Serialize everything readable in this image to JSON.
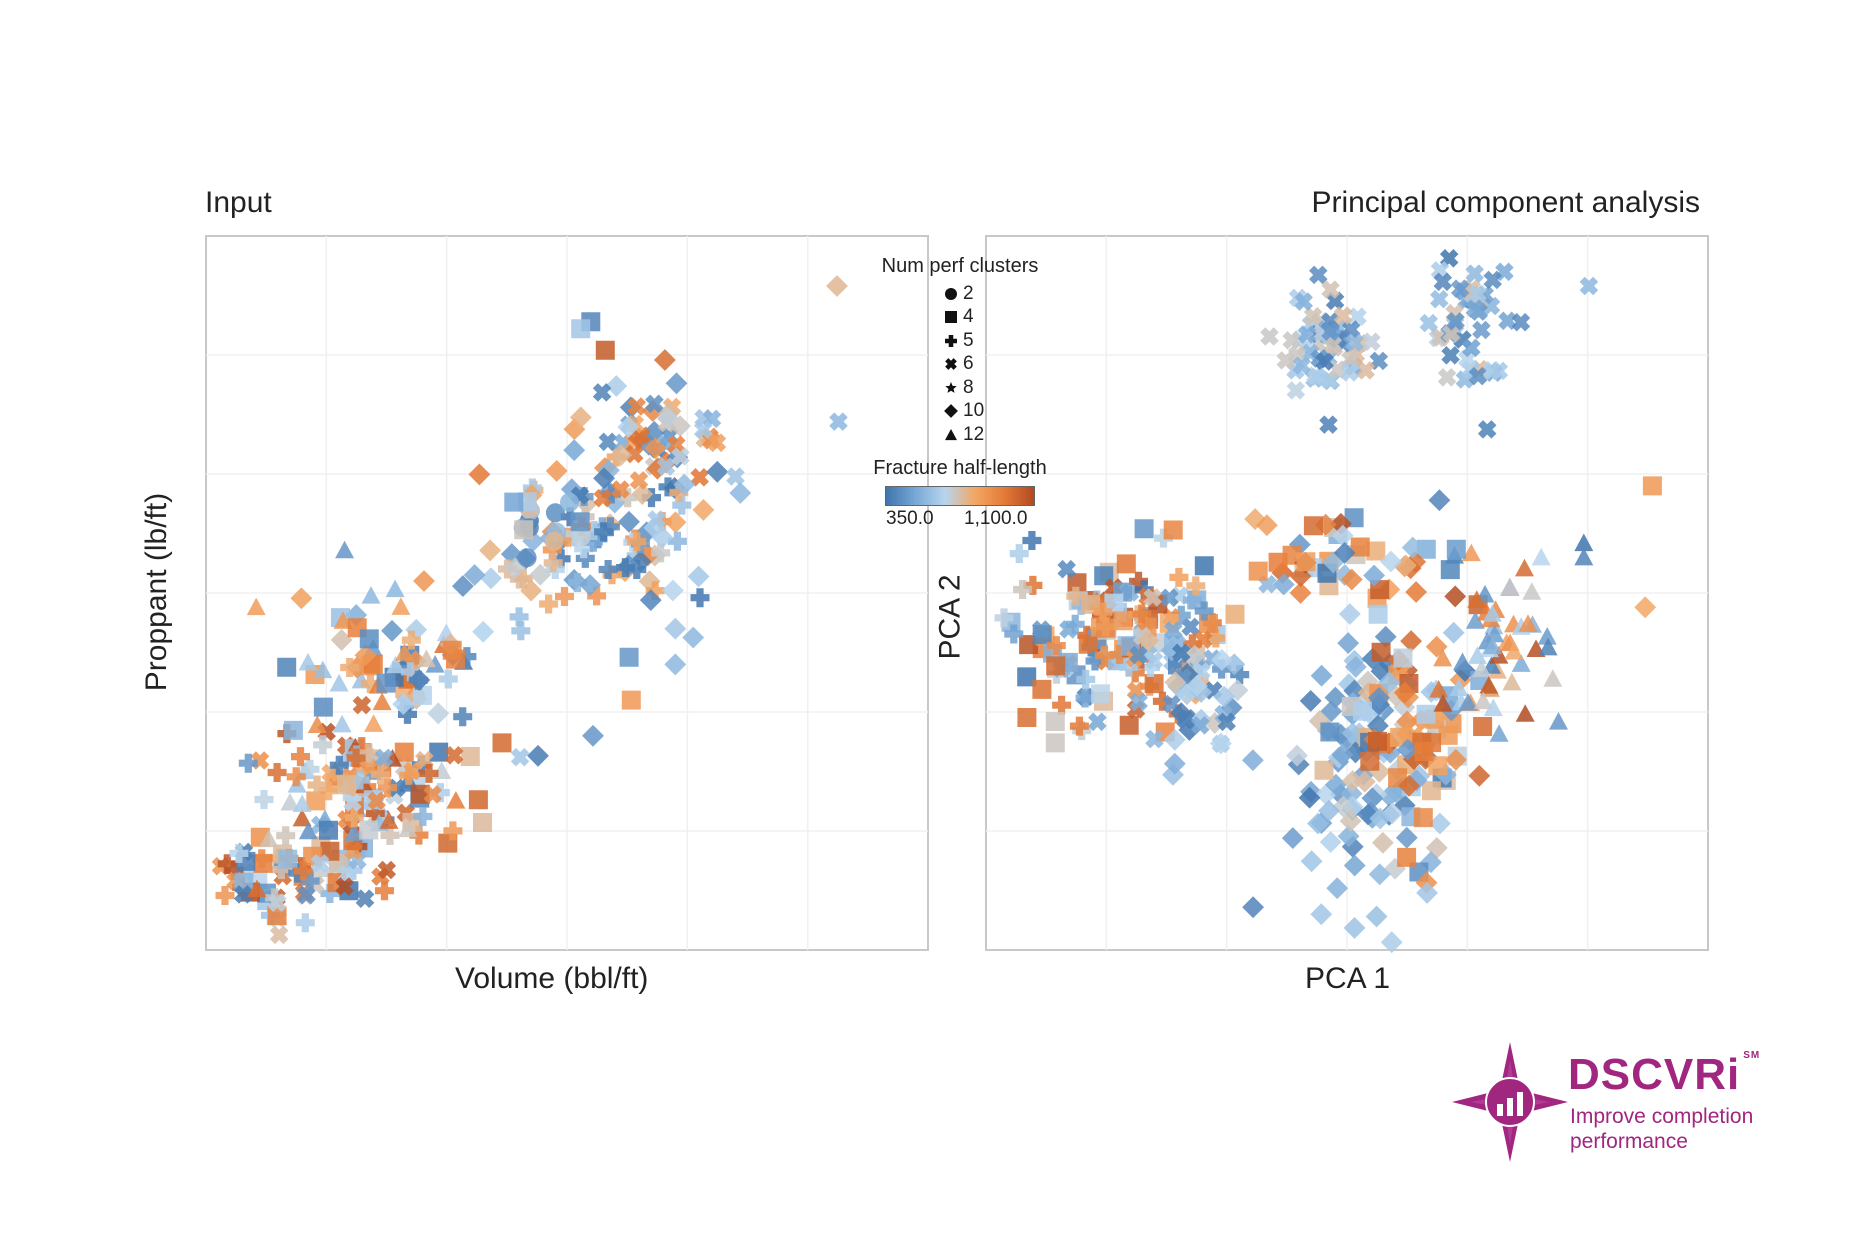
{
  "panels": {
    "input": {
      "title": "Input",
      "xlabel": "Volume (bbl/ft)",
      "ylabel": "Proppant (lb/ft)"
    },
    "pca": {
      "title": "Principal component analysis",
      "xlabel": "PCA 1",
      "ylabel": "PCA 2"
    }
  },
  "legend": {
    "shape_title": "Num perf clusters",
    "shapes": [
      {
        "value": "2",
        "shape": "circle"
      },
      {
        "value": "4",
        "shape": "square"
      },
      {
        "value": "5",
        "shape": "plus"
      },
      {
        "value": "6",
        "shape": "cross"
      },
      {
        "value": "8",
        "shape": "star"
      },
      {
        "value": "10",
        "shape": "diamond"
      },
      {
        "value": "12",
        "shape": "triangle"
      }
    ],
    "color_title": "Fracture half-length",
    "color_min_label": "350.0",
    "color_max_label": "1,100.0",
    "color_stops": [
      "#3f74ad",
      "#78a8d6",
      "#b7d5ee",
      "#f3a765",
      "#e57a36",
      "#b04a22"
    ]
  },
  "logo": {
    "name": "DSCVRi",
    "mark": "SM",
    "tagline": "Improve completion performance",
    "color": "#a0267f"
  },
  "chart_data": [
    {
      "type": "scatter",
      "title": "Input",
      "xlabel": "Volume (bbl/ft)",
      "ylabel": "Proppant (lb/ft)",
      "xlim": [
        0,
        100
      ],
      "ylim": [
        0,
        100
      ],
      "grid": true,
      "axis_ticks": false,
      "encoding": {
        "shape": "Num perf clusters",
        "color": "Fracture half-length"
      },
      "clusters": [
        {
          "cx": 12,
          "cy": 10,
          "sx": 6,
          "sy": 3,
          "n": 70,
          "shapes": [
            "square",
            "cross",
            "plus"
          ],
          "h_range": [
            350,
            1100
          ]
        },
        {
          "cx": 22,
          "cy": 23,
          "sx": 7,
          "sy": 5,
          "n": 120,
          "shapes": [
            "square",
            "cross",
            "plus",
            "triangle"
          ],
          "h_range": [
            350,
            1100
          ]
        },
        {
          "cx": 28,
          "cy": 40,
          "sx": 8,
          "sy": 5,
          "n": 65,
          "shapes": [
            "diamond",
            "square",
            "plus",
            "triangle"
          ],
          "h_range": [
            350,
            1000
          ]
        },
        {
          "cx": 55,
          "cy": 57,
          "sx": 7,
          "sy": 5,
          "n": 90,
          "shapes": [
            "diamond",
            "plus"
          ],
          "h_range": [
            350,
            900
          ]
        },
        {
          "cx": 62,
          "cy": 70,
          "sx": 6,
          "sy": 4,
          "n": 60,
          "shapes": [
            "cross",
            "diamond"
          ],
          "h_range": [
            350,
            1000
          ]
        },
        {
          "cx": 45,
          "cy": 60,
          "sx": 4,
          "sy": 5,
          "n": 15,
          "shapes": [
            "square",
            "circle"
          ],
          "h_range": [
            350,
            800
          ]
        }
      ],
      "points": [
        {
          "x": 53.3,
          "y": 88.0,
          "shape": "square",
          "h": 400
        },
        {
          "x": 51.9,
          "y": 87.0,
          "shape": "square",
          "h": 600
        },
        {
          "x": 55.3,
          "y": 84.0,
          "shape": "square",
          "h": 1050
        },
        {
          "x": 87.4,
          "y": 93.0,
          "shape": "diamond",
          "h": 750
        },
        {
          "x": 87.6,
          "y": 74.0,
          "shape": "cross",
          "h": 550
        },
        {
          "x": 19.2,
          "y": 56.0,
          "shape": "triangle",
          "h": 450
        },
        {
          "x": 58.6,
          "y": 41.0,
          "shape": "square",
          "h": 450
        },
        {
          "x": 58.9,
          "y": 35.0,
          "shape": "square",
          "h": 850
        },
        {
          "x": 53.6,
          "y": 30.0,
          "shape": "diamond",
          "h": 450
        },
        {
          "x": 65.0,
          "y": 40.0,
          "shape": "diamond",
          "h": 550
        },
        {
          "x": 61.6,
          "y": 49.0,
          "shape": "diamond",
          "h": 400
        },
        {
          "x": 65.0,
          "y": 45.0,
          "shape": "diamond",
          "h": 600
        },
        {
          "x": 43.5,
          "y": 27.0,
          "shape": "cross",
          "h": 600
        },
        {
          "x": 41.0,
          "y": 29.0,
          "shape": "square",
          "h": 1000
        },
        {
          "x": 51.0,
          "y": 70.0,
          "shape": "diamond",
          "h": 500
        },
        {
          "x": 74.0,
          "y": 64.0,
          "shape": "diamond",
          "h": 550
        }
      ]
    },
    {
      "type": "scatter",
      "title": "Principal component analysis",
      "xlabel": "PCA 1",
      "ylabel": "PCA 2",
      "xlim": [
        0,
        100
      ],
      "ylim": [
        0,
        100
      ],
      "grid": true,
      "axis_ticks": false,
      "encoding": {
        "shape": "Num perf clusters",
        "color": "Fracture half-length"
      },
      "clusters": [
        {
          "cx": 48,
          "cy": 85,
          "sx": 3,
          "sy": 4,
          "n": 55,
          "shapes": [
            "cross"
          ],
          "h_range": [
            350,
            750
          ]
        },
        {
          "cx": 67,
          "cy": 86,
          "sx": 3,
          "sy": 5,
          "n": 45,
          "shapes": [
            "cross"
          ],
          "h_range": [
            350,
            750
          ]
        },
        {
          "cx": 18,
          "cy": 44,
          "sx": 8,
          "sy": 6,
          "n": 150,
          "shapes": [
            "square",
            "plus",
            "cross"
          ],
          "h_range": [
            350,
            1100
          ]
        },
        {
          "cx": 28,
          "cy": 35,
          "sx": 4,
          "sy": 4,
          "n": 40,
          "shapes": [
            "cross",
            "diamond"
          ],
          "h_range": [
            350,
            750
          ]
        },
        {
          "cx": 52,
          "cy": 25,
          "sx": 4,
          "sy": 10,
          "n": 100,
          "shapes": [
            "diamond"
          ],
          "h_range": [
            350,
            750
          ]
        },
        {
          "cx": 60,
          "cy": 30,
          "sx": 5,
          "sy": 8,
          "n": 80,
          "shapes": [
            "diamond",
            "square"
          ],
          "h_range": [
            350,
            1050
          ]
        },
        {
          "cx": 70,
          "cy": 42,
          "sx": 3,
          "sy": 6,
          "n": 50,
          "shapes": [
            "triangle"
          ],
          "h_range": [
            350,
            1100
          ]
        },
        {
          "cx": 50,
          "cy": 55,
          "sx": 8,
          "sy": 3,
          "n": 45,
          "shapes": [
            "square",
            "diamond"
          ],
          "h_range": [
            350,
            1100
          ]
        }
      ],
      "points": [
        {
          "x": 83.5,
          "y": 93.0,
          "shape": "cross",
          "h": 550
        },
        {
          "x": 92.3,
          "y": 65.0,
          "shape": "square",
          "h": 850
        },
        {
          "x": 91.3,
          "y": 48.0,
          "shape": "diamond",
          "h": 800
        },
        {
          "x": 82.8,
          "y": 57.0,
          "shape": "triangle",
          "h": 350
        },
        {
          "x": 82.8,
          "y": 55.0,
          "shape": "triangle",
          "h": 400
        },
        {
          "x": 76.9,
          "y": 55.0,
          "shape": "triangle",
          "h": 650
        },
        {
          "x": 79.3,
          "y": 32.0,
          "shape": "triangle",
          "h": 450
        },
        {
          "x": 78.5,
          "y": 38.0,
          "shape": "triangle",
          "h": 700
        },
        {
          "x": 21.9,
          "y": 59.0,
          "shape": "square",
          "h": 450
        },
        {
          "x": 62.8,
          "y": 63.0,
          "shape": "diamond",
          "h": 400
        },
        {
          "x": 9.6,
          "y": 32.0,
          "shape": "square",
          "h": 700
        },
        {
          "x": 9.6,
          "y": 29.0,
          "shape": "square",
          "h": 700
        },
        {
          "x": 37.0,
          "y": 6.0,
          "shape": "diamond",
          "h": 400
        },
        {
          "x": 61.1,
          "y": 8.0,
          "shape": "diamond",
          "h": 600
        }
      ]
    }
  ]
}
